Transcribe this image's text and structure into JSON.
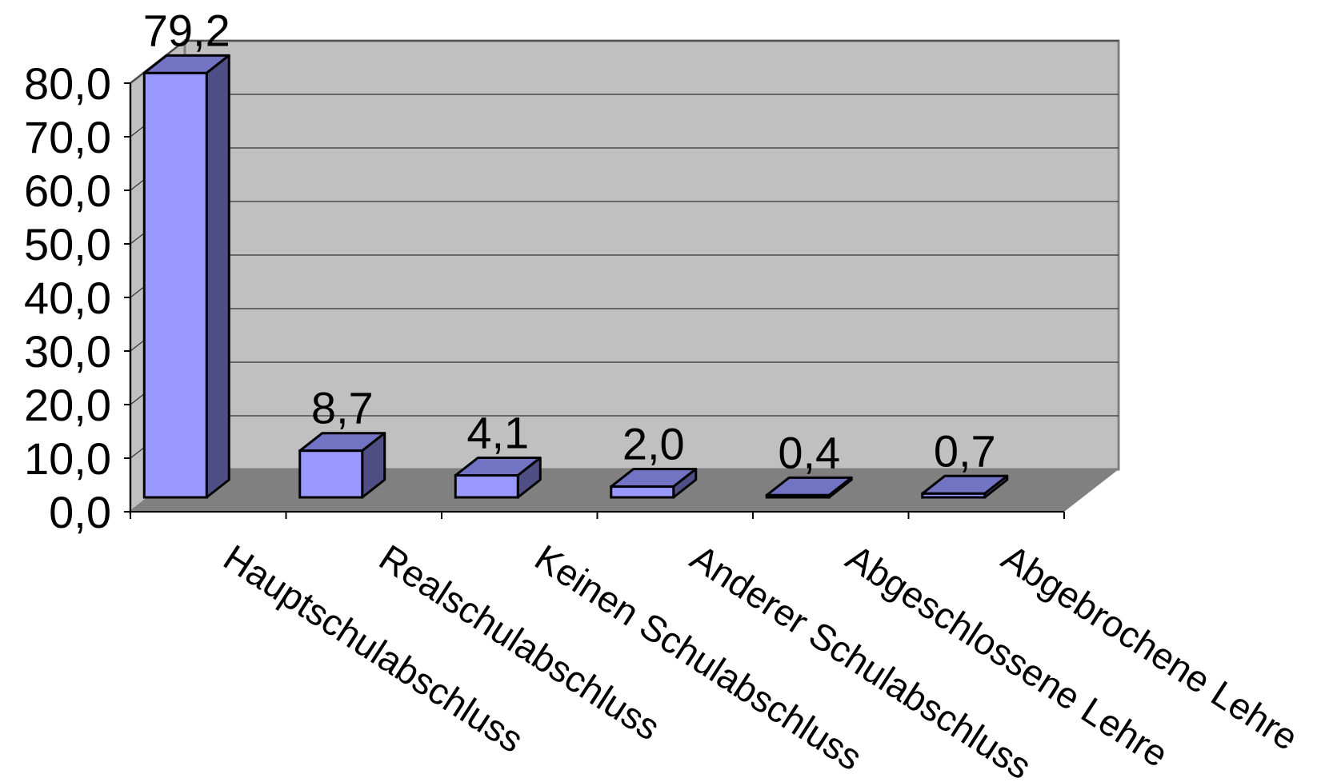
{
  "chart_data": {
    "type": "bar",
    "title": "",
    "xlabel": "",
    "ylabel": "",
    "categories": [
      "Hauptschulabschluss",
      "Realschulabschluss",
      "Keinen Schulabschluss",
      "Anderer Schulabschluss",
      "Abgeschlossene Lehre",
      "Abgebrochene Lehre"
    ],
    "values": [
      79.2,
      8.7,
      4.1,
      2.0,
      0.4,
      0.7
    ],
    "value_labels": [
      "79,2",
      "8,7",
      "4,1",
      "2,0",
      "0,4",
      "0,7"
    ],
    "ylim": [
      0,
      80
    ],
    "yticks": [
      0,
      10,
      20,
      30,
      40,
      50,
      60,
      70,
      80
    ],
    "ytick_labels": [
      "0,0",
      "10,0",
      "20,0",
      "30,0",
      "40,0",
      "50,0",
      "60,0",
      "70,0",
      "80,0"
    ],
    "grid": true,
    "legend": "none",
    "colors": {
      "bar_front": "#9999ff",
      "bar_side": "#4f4f85",
      "bar_top": "#7373c4",
      "wall": "#c0c0c0",
      "floor": "#808080",
      "gridline": "#333333"
    }
  }
}
